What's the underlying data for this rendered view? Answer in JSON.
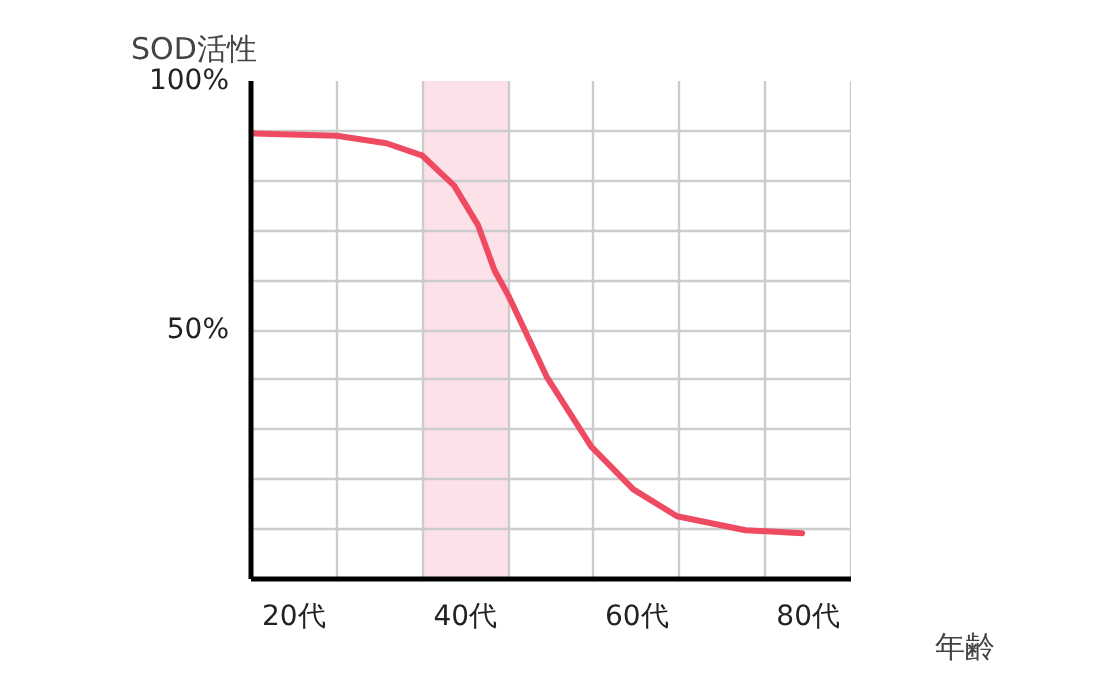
{
  "chart_data": {
    "type": "line",
    "xlabel": "年齢",
    "ylabel": "SOD活性",
    "x": [
      15,
      25,
      30.8,
      35,
      38.7,
      41.5,
      43.4,
      45,
      49.5,
      54.7,
      59.6,
      64.7,
      72.7,
      79.3
    ],
    "series": [
      {
        "color": "#ee4b62",
        "values": [
          89.5,
          89,
          87.5,
          85,
          79,
          71,
          62,
          57,
          40.6,
          26.6,
          18,
          12.6,
          9.8,
          9.2
        ]
      }
    ],
    "xlim": [
      15,
      85
    ],
    "ylim": [
      0,
      100
    ],
    "xticks": [
      {
        "value": 15,
        "label": null
      },
      {
        "value": 20,
        "label": "20代"
      },
      {
        "value": 25,
        "label": null
      },
      {
        "value": 35,
        "label": null
      },
      {
        "value": 40,
        "label": "40代"
      },
      {
        "value": 45,
        "label": null
      },
      {
        "value": 55,
        "label": null
      },
      {
        "value": 60,
        "label": "60代"
      },
      {
        "value": 65,
        "label": null
      },
      {
        "value": 75,
        "label": null
      },
      {
        "value": 80,
        "label": "80代"
      },
      {
        "value": 85,
        "label": null
      }
    ],
    "yticks": [
      {
        "value": 0,
        "label": null
      },
      {
        "value": 10,
        "label": null
      },
      {
        "value": 20,
        "label": null
      },
      {
        "value": 30,
        "label": null
      },
      {
        "value": 40,
        "label": null
      },
      {
        "value": 50,
        "label": "50%"
      },
      {
        "value": 60,
        "label": null
      },
      {
        "value": 70,
        "label": null
      },
      {
        "value": 80,
        "label": null
      },
      {
        "value": 90,
        "label": null
      },
      {
        "value": 100,
        "label": "100%"
      }
    ],
    "bands": [
      {
        "axis": "x",
        "from": 35,
        "to": 45,
        "color": "#fde1e8"
      }
    ],
    "grid": true,
    "line_style": "solid"
  }
}
